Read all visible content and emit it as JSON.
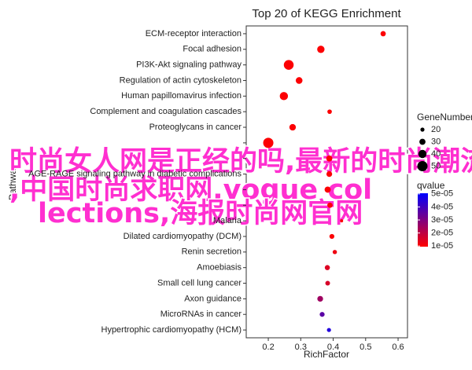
{
  "chart_data": {
    "type": "bubble",
    "title": "Top 20 of KEGG Enrichment",
    "x_label": "RichFactor",
    "y_label": "Pathway",
    "categories": [
      "ECM-receptor interaction",
      "Focal adhesion",
      "PI3K-Akt signaling pathway",
      "Regulation of actin cytoskeleton",
      "Human papillomavirus infection",
      "Complement and coagulation cascades",
      "Proteoglycans in cancer",
      null,
      null,
      "AGE-RAGE signaling pathway in diabetic complications",
      null,
      null,
      "Malaria",
      "Dilated cardiomyopathy (DCM)",
      "Renin secretion",
      "Amoebiasis",
      "Small cell lung cancer",
      "Axon guidance",
      "MicroRNAs in cancer",
      "Hypertrophic cardiomyopathy (HCM)"
    ],
    "values": [
      0.554,
      0.362,
      0.263,
      0.295,
      0.248,
      0.389,
      0.275,
      0.2,
      0.388,
      0.388,
      0.383,
      0.39,
      0.426,
      0.396,
      0.405,
      0.382,
      0.383,
      0.36,
      0.366,
      0.387
    ],
    "sizes": [
      26,
      36,
      48,
      33,
      40,
      22,
      32,
      50,
      30,
      28,
      30,
      26,
      15,
      24,
      21,
      25,
      23,
      28,
      24,
      20
    ],
    "qvalues": [
      1e-05,
      1e-05,
      1e-05,
      1e-05,
      1e-05,
      1e-05,
      1e-05,
      1e-05,
      1e-05,
      1e-05,
      1e-05,
      1e-05,
      1e-05,
      1e-05,
      1.2e-05,
      1.5e-05,
      1.6e-05,
      2.5e-05,
      3.6e-05,
      4.5e-05
    ],
    "xlim": [
      0.132,
      0.629
    ],
    "xticks": [
      0.2,
      0.3,
      0.4,
      0.5,
      0.6
    ],
    "size_legend": {
      "title": "GeneNumber",
      "values": [
        20,
        30,
        40,
        50
      ]
    },
    "color_legend": {
      "title": "qvalue",
      "lim": [
        9.5e-06,
        5.05e-05
      ],
      "colors": [
        "#ff0000",
        "#0000ff"
      ],
      "ticks": [
        {
          "value": 5e-05,
          "label": "5e-05"
        },
        {
          "value": 4e-05,
          "label": "4e-05"
        },
        {
          "value": 3e-05,
          "label": "3e-05"
        },
        {
          "value": 2e-05,
          "label": "2e-05"
        },
        {
          "value": 1e-05,
          "label": "1e-05"
        }
      ]
    }
  },
  "overlay_lines": [
    "时尚女人网是正经的吗,最新的时尚潮流",
    ",中国时尚求职网,vogue col",
    "lections,海报时尚网官网"
  ]
}
